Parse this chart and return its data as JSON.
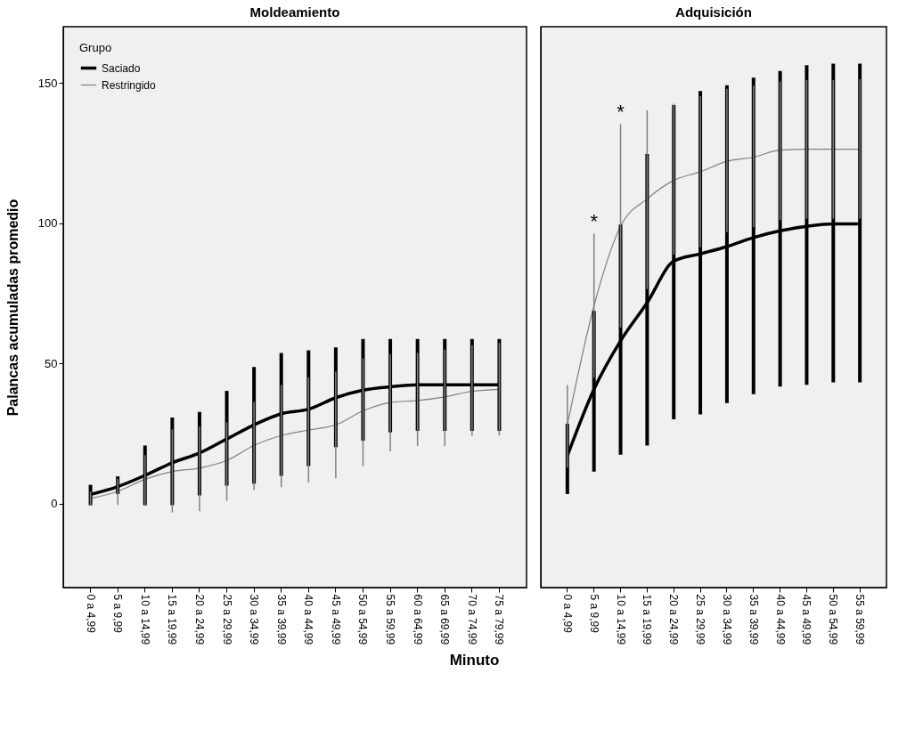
{
  "chart_data": [
    {
      "type": "line",
      "title": "Moldeamiento",
      "xlabel": "Minuto",
      "ylabel": "Palancas acumuladas promedio",
      "legend_title": "Grupo",
      "legend": "top left",
      "ylim": [
        -30,
        170
      ],
      "yticks": [
        0,
        50,
        100,
        150
      ],
      "categories": [
        "0 a 4,99",
        "5 a 9,99",
        "10 a 14,99",
        "15 a 19,99",
        "20 a 24,99",
        "25 a 29,99",
        "30 a 34,99",
        "35 a 39,99",
        "40 a 44,99",
        "45 a 49,99",
        "50 a 54,99",
        "55 a 59,99",
        "60 a 64,99",
        "65 a 69,99",
        "70 a 74,99",
        "75 a 79,99"
      ],
      "series": [
        {
          "name": "Saciado",
          "color": "#000000",
          "values": [
            3.2,
            6,
            10,
            14.5,
            18,
            23,
            28,
            32,
            33.6,
            37.7,
            40.4,
            41.6,
            42.3,
            42.3,
            42.3,
            42.3
          ],
          "errors": [
            [
              0,
              6
            ],
            [
              4,
              9
            ],
            [
              0,
              20
            ],
            [
              0,
              30
            ],
            [
              3.5,
              32
            ],
            [
              7,
              39.5
            ],
            [
              7.7,
              48
            ],
            [
              10.5,
              53
            ],
            [
              14,
              54
            ],
            [
              20.7,
              55
            ],
            [
              23,
              58
            ],
            [
              26,
              58
            ],
            [
              26.5,
              58
            ],
            [
              26.5,
              58
            ],
            [
              26.5,
              58
            ],
            [
              26.5,
              58
            ]
          ]
        },
        {
          "name": "Restringido",
          "color": "#808080",
          "values": [
            1.8,
            4.3,
            8.6,
            11.4,
            12.6,
            15.3,
            20.7,
            24.2,
            26.2,
            28,
            33,
            36,
            36.7,
            38,
            40,
            40.7
          ],
          "errors": [
            [
              -0.5,
              4
            ],
            [
              -0.3,
              8.6
            ],
            [
              -0.3,
              17
            ],
            [
              -3,
              26.2
            ],
            [
              -2.5,
              27.2
            ],
            [
              1.2,
              28.7
            ],
            [
              5,
              36
            ],
            [
              6,
              42
            ],
            [
              7.7,
              44.7
            ],
            [
              9.2,
              46.8
            ],
            [
              13.5,
              51.5
            ],
            [
              18.8,
              53
            ],
            [
              20.7,
              53.4
            ],
            [
              20.7,
              54.6
            ],
            [
              24.4,
              56.2
            ],
            [
              24.5,
              57
            ]
          ]
        }
      ]
    },
    {
      "type": "line",
      "title": "Adquisición",
      "tick_labels": "x",
      "ylim": [
        -30,
        170
      ],
      "yticks": [
        0,
        50,
        100,
        150
      ],
      "categories": [
        "0 a 4,99",
        "5 a 9,99",
        "10 a 14,99",
        "15 a 19,99",
        "20 a 24,99",
        "25 a 29,99",
        "30 a 34,99",
        "35 a 39,99",
        "40 a 44,99",
        "45 a 49,99",
        "50 a 54,99",
        "55 a 59,99"
      ],
      "annotations": [
        {
          "text": "*",
          "x": "5 a 9,99",
          "y": 96
        },
        {
          "text": "*",
          "x": "10 a 14,99",
          "y": 135
        }
      ],
      "series": [
        {
          "color": "#000000",
          "values": [
            17,
            40.7,
            58,
            71.6,
            86.4,
            89,
            91.6,
            94.8,
            97.2,
            98.8,
            99.7,
            99.7
          ],
          "errors": [
            [
              4,
              27.8
            ],
            [
              12,
              68
            ],
            [
              18,
              98.8
            ],
            [
              21.3,
              124
            ],
            [
              30.6,
              141.4
            ],
            [
              32.4,
              146.4
            ],
            [
              36.4,
              148.5
            ],
            [
              39.6,
              151.2
            ],
            [
              42.3,
              153.6
            ],
            [
              42.9,
              155.6
            ],
            [
              43.8,
              156.2
            ],
            [
              43.8,
              156.2
            ]
          ]
        },
        {
          "color": "#808080",
          "values": [
            28,
            70.4,
            98.8,
            108.6,
            115.2,
            118.3,
            122,
            123.5,
            126,
            126.3,
            126.3,
            126.3
          ],
          "errors": [
            [
              13,
              42
            ],
            [
              45,
              96
            ],
            [
              63,
              135
            ],
            [
              76.7,
              140
            ],
            [
              89,
              142.3
            ],
            [
              91.6,
              145
            ],
            [
              97,
              147.6
            ],
            [
              98.8,
              148.7
            ],
            [
              101.3,
              150.2
            ],
            [
              101.8,
              150.7
            ],
            [
              101.8,
              150.7
            ],
            [
              101.8,
              151
            ]
          ]
        }
      ]
    }
  ]
}
